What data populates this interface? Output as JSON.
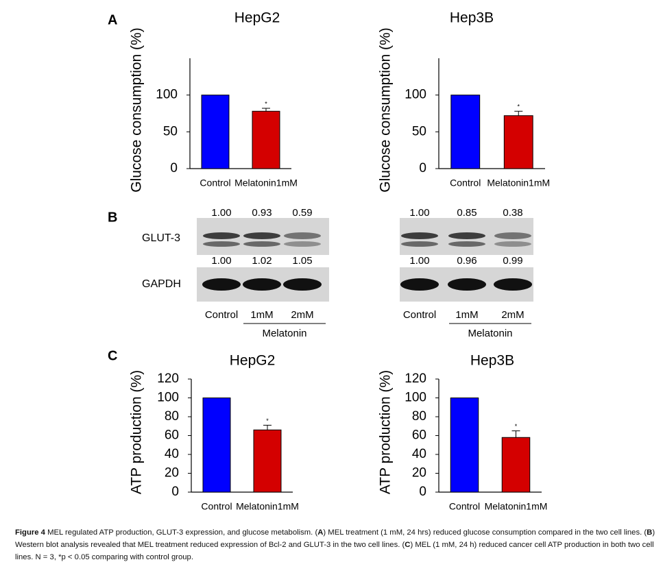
{
  "panel_labels": [
    "A",
    "B",
    "C"
  ],
  "chart_data": [
    {
      "type": "bar",
      "title": "HepG2",
      "y_label": "Glucose consumption (%)",
      "categories": [
        "Control",
        "Melatonin1mM"
      ],
      "values": [
        100,
        78
      ],
      "errors": [
        0,
        4
      ],
      "colors": [
        "#0000ff",
        "#d40000"
      ],
      "ylim": [
        0,
        150
      ],
      "yticks": [
        0,
        50,
        100
      ],
      "annotations": [
        {
          "index": 1,
          "text": "*"
        }
      ]
    },
    {
      "type": "bar",
      "title": "Hep3B",
      "y_label": "Glucose consumption (%)",
      "categories": [
        "Control",
        "Melatonin1mM"
      ],
      "values": [
        100,
        72
      ],
      "errors": [
        0,
        6
      ],
      "colors": [
        "#0000ff",
        "#d40000"
      ],
      "ylim": [
        0,
        150
      ],
      "yticks": [
        0,
        50,
        100
      ],
      "annotations": [
        {
          "index": 1,
          "text": "*"
        }
      ]
    },
    {
      "type": "bar",
      "title": "HepG2",
      "y_label": "ATP production (%)",
      "categories": [
        "Control",
        "Melatonin1mM"
      ],
      "values": [
        100,
        66
      ],
      "errors": [
        0,
        5
      ],
      "colors": [
        "#0000ff",
        "#d40000"
      ],
      "ylim": [
        0,
        120
      ],
      "yticks": [
        0,
        20,
        40,
        60,
        80,
        100,
        120
      ],
      "annotations": [
        {
          "index": 1,
          "text": "*"
        }
      ]
    },
    {
      "type": "bar",
      "title": "Hep3B",
      "y_label": "ATP production (%)",
      "categories": [
        "Control",
        "Melatonin1mM"
      ],
      "values": [
        100,
        58
      ],
      "errors": [
        0,
        7
      ],
      "colors": [
        "#0000ff",
        "#d40000"
      ],
      "ylim": [
        0,
        120
      ],
      "yticks": [
        0,
        20,
        40,
        60,
        80,
        100,
        120
      ],
      "annotations": [
        {
          "index": 1,
          "text": "*"
        }
      ]
    }
  ],
  "blot_rows": [
    "GLUT-3",
    "GAPDH"
  ],
  "blots": [
    {
      "values": [
        [
          "1.00",
          "0.93",
          "0.59"
        ],
        [
          "1.00",
          "1.02",
          "1.05"
        ]
      ],
      "lanes": [
        "Control",
        "1mM",
        "2mM"
      ],
      "group": "Melatonin"
    },
    {
      "values": [
        [
          "1.00",
          "0.85",
          "0.38"
        ],
        [
          "1.00",
          "0.96",
          "0.99"
        ]
      ],
      "lanes": [
        "Control",
        "1mM",
        "2mM"
      ],
      "group": "Melatonin"
    }
  ],
  "caption": {
    "label": "Figure 4",
    "parts": [
      " MEL regulated ATP production, GLUT-3 expression, and glucose metabolism. (",
      "A",
      ") MEL treatment (1 mM, 24 hrs) reduced glucose consumption compared in the two cell lines. (",
      "B",
      ") Western blot analysis revealed that MEL treatment reduced expression of Bcl-2 and GLUT-3 in the two cell lines. (",
      "C",
      ") MEL (1 mM, 24 h) reduced cancer cell ATP production in both two cell lines. N = 3, *p < 0.05 comparing with control group."
    ]
  }
}
